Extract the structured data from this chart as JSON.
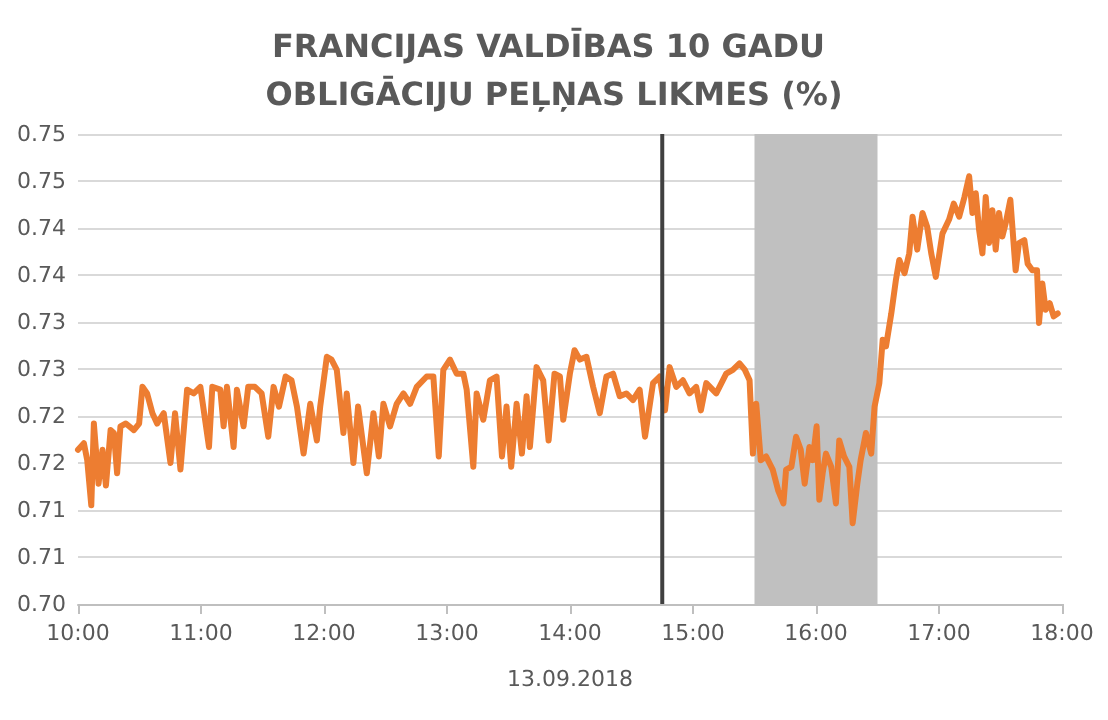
{
  "chart_data": {
    "type": "line",
    "title": "FRANCIJAS VALDĪBAS 10 GADU OBLIGĀCIJU PEĻŅAS LIKMES (%)",
    "xlabel": "13.09.2018",
    "xlim": [
      10,
      18
    ],
    "xticks": [
      {
        "value": 10,
        "label": "10:00"
      },
      {
        "value": 11,
        "label": "11:00"
      },
      {
        "value": 12,
        "label": "12:00"
      },
      {
        "value": 13,
        "label": "13:00"
      },
      {
        "value": 14,
        "label": "14:00"
      },
      {
        "value": 15,
        "label": "15:00"
      },
      {
        "value": 16,
        "label": "16:00"
      },
      {
        "value": 17,
        "label": "17:00"
      },
      {
        "value": 18,
        "label": "18:00"
      }
    ],
    "ylim": [
      0.7,
      0.75
    ],
    "yticks": [
      {
        "value": 0.7,
        "label": "0.70"
      },
      {
        "value": 0.705,
        "label": "0.71"
      },
      {
        "value": 0.71,
        "label": "0.71"
      },
      {
        "value": 0.715,
        "label": "0.72"
      },
      {
        "value": 0.72,
        "label": "0.72"
      },
      {
        "value": 0.725,
        "label": "0.73"
      },
      {
        "value": 0.73,
        "label": "0.73"
      },
      {
        "value": 0.735,
        "label": "0.74"
      },
      {
        "value": 0.74,
        "label": "0.74"
      },
      {
        "value": 0.745,
        "label": "0.75"
      },
      {
        "value": 0.75,
        "label": "0.75"
      }
    ],
    "grid": "y",
    "marker": "none",
    "line_style": "solid",
    "ref_lines": [
      {
        "axis": "x",
        "value": 14.75,
        "color": "#404040"
      }
    ],
    "bands": [
      {
        "axis": "x",
        "from": 15.5,
        "to": 16.5,
        "color": "#c0c0c0"
      }
    ],
    "series": [
      {
        "color": "#ed7d31",
        "x": [
          10.0,
          10.048,
          10.075,
          10.108,
          10.129,
          10.167,
          10.199,
          10.227,
          10.265,
          10.292,
          10.318,
          10.345,
          10.389,
          10.454,
          10.497,
          10.524,
          10.562,
          10.605,
          10.643,
          10.697,
          10.752,
          10.789,
          10.833,
          10.887,
          10.941,
          10.995,
          11.065,
          11.092,
          11.157,
          11.184,
          11.211,
          11.265,
          11.292,
          11.346,
          11.384,
          11.438,
          11.493,
          11.547,
          11.59,
          11.634,
          11.688,
          11.736,
          11.78,
          11.834,
          11.888,
          11.942,
          11.969,
          12.023,
          12.061,
          12.104,
          12.158,
          12.185,
          12.239,
          12.277,
          12.348,
          12.402,
          12.446,
          12.483,
          12.537,
          12.591,
          12.646,
          12.7,
          12.754,
          12.835,
          12.889,
          12.933,
          12.97,
          13.024,
          13.079,
          13.133,
          13.16,
          13.214,
          13.241,
          13.295,
          13.349,
          13.403,
          13.447,
          13.484,
          13.522,
          13.566,
          13.609,
          13.647,
          13.674,
          13.728,
          13.782,
          13.826,
          13.874,
          13.918,
          13.945,
          13.999,
          14.037,
          14.08,
          14.134,
          14.188,
          14.242,
          14.296,
          14.35,
          14.404,
          14.458,
          14.512,
          14.566,
          14.61,
          14.675,
          14.729,
          14.772,
          14.81,
          14.864,
          14.918,
          14.972,
          15.026,
          15.064,
          15.108,
          15.189,
          15.27,
          15.324,
          15.378,
          15.422,
          15.46,
          15.487,
          15.514,
          15.551,
          15.594,
          15.648,
          15.692,
          15.735,
          15.757,
          15.8,
          15.838,
          15.876,
          15.908,
          15.946,
          15.973,
          16.005,
          16.027,
          16.054,
          16.081,
          16.124,
          16.162,
          16.189,
          16.228,
          16.271,
          16.298,
          16.336,
          16.363,
          16.406,
          16.449,
          16.476,
          16.515,
          16.542,
          16.569,
          16.612,
          16.65,
          16.677,
          16.72,
          16.758,
          16.785,
          16.823,
          16.866,
          16.904,
          16.937,
          16.974,
          17.028,
          17.082,
          17.12,
          17.164,
          17.207,
          17.245,
          17.272,
          17.299,
          17.326,
          17.353,
          17.38,
          17.407,
          17.434,
          17.461,
          17.488,
          17.515,
          17.542,
          17.58,
          17.623,
          17.65,
          17.694,
          17.721,
          17.759,
          17.797,
          17.813,
          17.84,
          17.867,
          17.9,
          17.932,
          17.965
        ],
        "values": [
          0.7164,
          0.7171,
          0.7153,
          0.7105,
          0.7192,
          0.7128,
          0.7164,
          0.7126,
          0.7185,
          0.7182,
          0.7139,
          0.7189,
          0.7192,
          0.7185,
          0.7192,
          0.7231,
          0.7224,
          0.7203,
          0.7192,
          0.7203,
          0.715,
          0.7203,
          0.7143,
          0.7228,
          0.7224,
          0.7231,
          0.7167,
          0.7231,
          0.7228,
          0.7189,
          0.7231,
          0.7167,
          0.7228,
          0.7189,
          0.7231,
          0.7231,
          0.7224,
          0.7178,
          0.7231,
          0.721,
          0.7242,
          0.7238,
          0.721,
          0.716,
          0.7213,
          0.7174,
          0.721,
          0.7263,
          0.726,
          0.7249,
          0.7182,
          0.7224,
          0.715,
          0.721,
          0.7139,
          0.7203,
          0.7157,
          0.7213,
          0.7189,
          0.7213,
          0.7224,
          0.7213,
          0.7231,
          0.7242,
          0.7242,
          0.7157,
          0.7249,
          0.726,
          0.7245,
          0.7245,
          0.7228,
          0.7146,
          0.7224,
          0.7196,
          0.7238,
          0.7242,
          0.7157,
          0.721,
          0.7146,
          0.7213,
          0.716,
          0.7221,
          0.7167,
          0.7252,
          0.7238,
          0.7174,
          0.7245,
          0.7242,
          0.7196,
          0.7245,
          0.727,
          0.726,
          0.7263,
          0.7231,
          0.7203,
          0.7242,
          0.7245,
          0.7221,
          0.7224,
          0.7217,
          0.7228,
          0.7178,
          0.7235,
          0.7242,
          0.7206,
          0.7252,
          0.7231,
          0.7238,
          0.7224,
          0.7231,
          0.7206,
          0.7235,
          0.7224,
          0.7245,
          0.7249,
          0.7256,
          0.7249,
          0.7238,
          0.716,
          0.7213,
          0.7153,
          0.7157,
          0.7143,
          0.7121,
          0.7107,
          0.7143,
          0.7146,
          0.7178,
          0.7164,
          0.7128,
          0.7167,
          0.7153,
          0.7189,
          0.7111,
          0.7139,
          0.716,
          0.7146,
          0.7107,
          0.7174,
          0.7157,
          0.7146,
          0.7086,
          0.7128,
          0.7153,
          0.7182,
          0.716,
          0.721,
          0.7235,
          0.7281,
          0.7274,
          0.7309,
          0.7345,
          0.7366,
          0.7352,
          0.7373,
          0.7412,
          0.7377,
          0.7416,
          0.7401,
          0.7373,
          0.7348,
          0.7394,
          0.7409,
          0.7426,
          0.7412,
          0.7433,
          0.7455,
          0.7416,
          0.7437,
          0.7398,
          0.7373,
          0.7433,
          0.7384,
          0.7419,
          0.7377,
          0.7416,
          0.7391,
          0.7405,
          0.743,
          0.7355,
          0.7384,
          0.7387,
          0.7362,
          0.7355,
          0.7355,
          0.7299,
          0.7341,
          0.7313,
          0.732,
          0.7306,
          0.7309
        ]
      }
    ]
  }
}
